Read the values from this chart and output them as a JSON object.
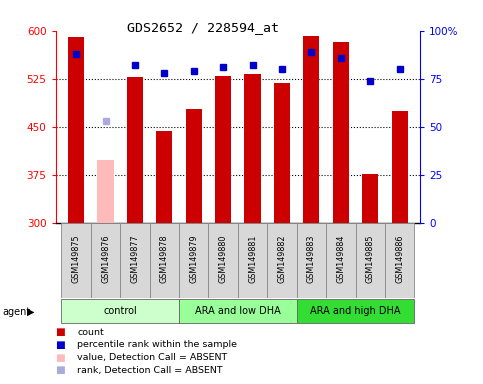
{
  "title": "GDS2652 / 228594_at",
  "samples": [
    "GSM149875",
    "GSM149876",
    "GSM149877",
    "GSM149878",
    "GSM149879",
    "GSM149880",
    "GSM149881",
    "GSM149882",
    "GSM149883",
    "GSM149884",
    "GSM149885",
    "GSM149886"
  ],
  "count_values": [
    590,
    null,
    528,
    443,
    478,
    530,
    533,
    519,
    591,
    582,
    376,
    474
  ],
  "count_absent": [
    null,
    398,
    null,
    null,
    null,
    null,
    null,
    null,
    null,
    null,
    null,
    null
  ],
  "rank_values": [
    88,
    null,
    82,
    78,
    79,
    81,
    82,
    80,
    89,
    86,
    74,
    80
  ],
  "rank_absent": [
    null,
    53,
    null,
    null,
    null,
    null,
    null,
    null,
    null,
    null,
    null,
    null
  ],
  "ymin": 300,
  "ymax": 600,
  "yticks": [
    300,
    375,
    450,
    525,
    600
  ],
  "yright_min": 0,
  "yright_max": 100,
  "yright_ticks": [
    0,
    25,
    50,
    75,
    100
  ],
  "groups": [
    {
      "label": "control",
      "start": 0,
      "end": 4,
      "color": "#ccffcc"
    },
    {
      "label": "ARA and low DHA",
      "start": 4,
      "end": 8,
      "color": "#99ff99"
    },
    {
      "label": "ARA and high DHA",
      "start": 8,
      "end": 12,
      "color": "#33dd33"
    }
  ],
  "bar_color": "#cc0000",
  "bar_absent_color": "#ffbbbb",
  "rank_color": "#0000cc",
  "rank_absent_color": "#aaaadd",
  "bar_width": 0.55,
  "bg_plot": "#ffffff",
  "legend_items": [
    {
      "color": "#cc0000",
      "label": "count"
    },
    {
      "color": "#0000cc",
      "label": "percentile rank within the sample"
    },
    {
      "color": "#ffbbbb",
      "label": "value, Detection Call = ABSENT"
    },
    {
      "color": "#aaaadd",
      "label": "rank, Detection Call = ABSENT"
    }
  ]
}
